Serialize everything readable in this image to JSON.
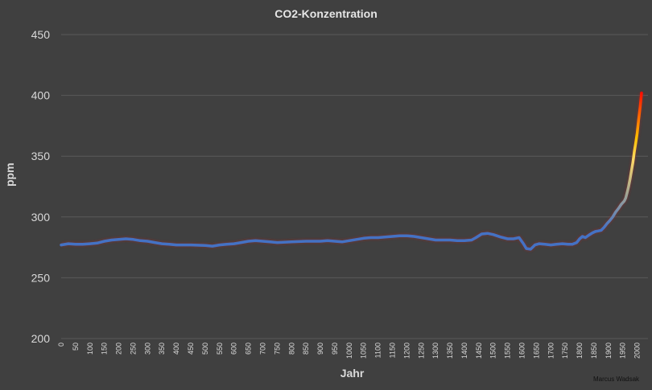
{
  "chart_data": {
    "type": "line",
    "title": "CO2-Konzentration",
    "xlabel": "Jahr",
    "ylabel": "ppm",
    "ylim": [
      200,
      450
    ],
    "xlim": [
      0,
      2015
    ],
    "yticks": [
      200,
      250,
      300,
      350,
      400,
      450
    ],
    "xticks": [
      0,
      50,
      100,
      150,
      200,
      250,
      300,
      350,
      400,
      450,
      500,
      550,
      600,
      650,
      700,
      750,
      800,
      850,
      900,
      950,
      1000,
      1050,
      1100,
      1150,
      1200,
      1250,
      1300,
      1350,
      1400,
      1450,
      1500,
      1550,
      1600,
      1650,
      1700,
      1750,
      1800,
      1850,
      1900,
      1950,
      2000
    ],
    "grid": true,
    "credit": "Marcus Wadsak",
    "line_color": "#4472c4",
    "gradient_colors": [
      "#4472c4",
      "#ffd966",
      "#ffc000",
      "#ff0000"
    ],
    "series": [
      {
        "name": "CO2",
        "x": [
          0,
          25,
          50,
          75,
          100,
          125,
          150,
          175,
          200,
          225,
          250,
          275,
          300,
          325,
          350,
          375,
          400,
          450,
          500,
          525,
          550,
          575,
          600,
          625,
          650,
          675,
          700,
          725,
          750,
          800,
          850,
          900,
          925,
          950,
          975,
          1000,
          1025,
          1050,
          1075,
          1100,
          1125,
          1150,
          1175,
          1200,
          1225,
          1250,
          1275,
          1300,
          1325,
          1350,
          1375,
          1400,
          1425,
          1440,
          1460,
          1480,
          1500,
          1525,
          1550,
          1570,
          1590,
          1605,
          1615,
          1630,
          1645,
          1660,
          1680,
          1700,
          1720,
          1740,
          1760,
          1775,
          1790,
          1800,
          1810,
          1820,
          1835,
          1845,
          1855,
          1865,
          1875,
          1885,
          1895,
          1905,
          1915,
          1925,
          1935,
          1945,
          1955,
          1960,
          1965,
          1970,
          1975,
          1980,
          1985,
          1990,
          1995,
          2000,
          2005,
          2010,
          2015
        ],
        "y": [
          277,
          278,
          277.5,
          277.5,
          278,
          278.5,
          280,
          281,
          281.5,
          282,
          281.5,
          280.5,
          280,
          279,
          278,
          277.5,
          277,
          277,
          276.5,
          276,
          277,
          277.5,
          278,
          279,
          280,
          280.5,
          280,
          279.5,
          279,
          279.5,
          280,
          280,
          280.5,
          280,
          279.5,
          280.5,
          281.5,
          282.5,
          283,
          283,
          283.5,
          284,
          284.5,
          284.5,
          284,
          283,
          282,
          281,
          281,
          281,
          280.5,
          280.5,
          281,
          283,
          286,
          286.5,
          285.5,
          283.5,
          282,
          282,
          283,
          278,
          274,
          273.5,
          277,
          278,
          277.5,
          277,
          277.5,
          278,
          277.5,
          277.5,
          279,
          282,
          284,
          283,
          285.5,
          287,
          288,
          288.5,
          289,
          291.5,
          294.5,
          297,
          300,
          304,
          307,
          310.5,
          313,
          315.5,
          320,
          325,
          331,
          338,
          345,
          354,
          361,
          369,
          380,
          390,
          402
        ]
      }
    ]
  }
}
